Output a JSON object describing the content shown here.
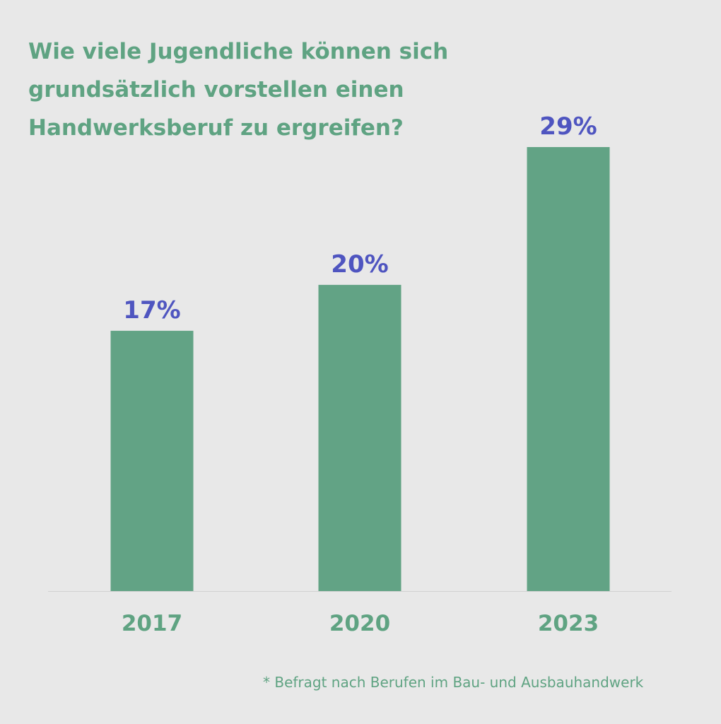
{
  "colors": {
    "background": "#e8e8e8",
    "bar": "#62a385",
    "title": "#5fa382",
    "value_label": "#4f55c0",
    "axis_label": "#5fa382",
    "baseline": "#d2d2d2"
  },
  "chart_data": {
    "type": "bar",
    "title_lines": [
      "Wie viele Jugendliche können sich",
      "grundsätzlich vorstellen einen",
      "Handwerksberuf zu ergreifen?"
    ],
    "categories": [
      "2017",
      "2020",
      "2023"
    ],
    "values": [
      17,
      20,
      29
    ],
    "value_labels": [
      "17%",
      "20%",
      "29%"
    ],
    "ylim": [
      0,
      29
    ],
    "grid": false,
    "legend": "none",
    "footnote": "* Befragt nach Berufen im Bau- und Ausbauhandwerk"
  }
}
